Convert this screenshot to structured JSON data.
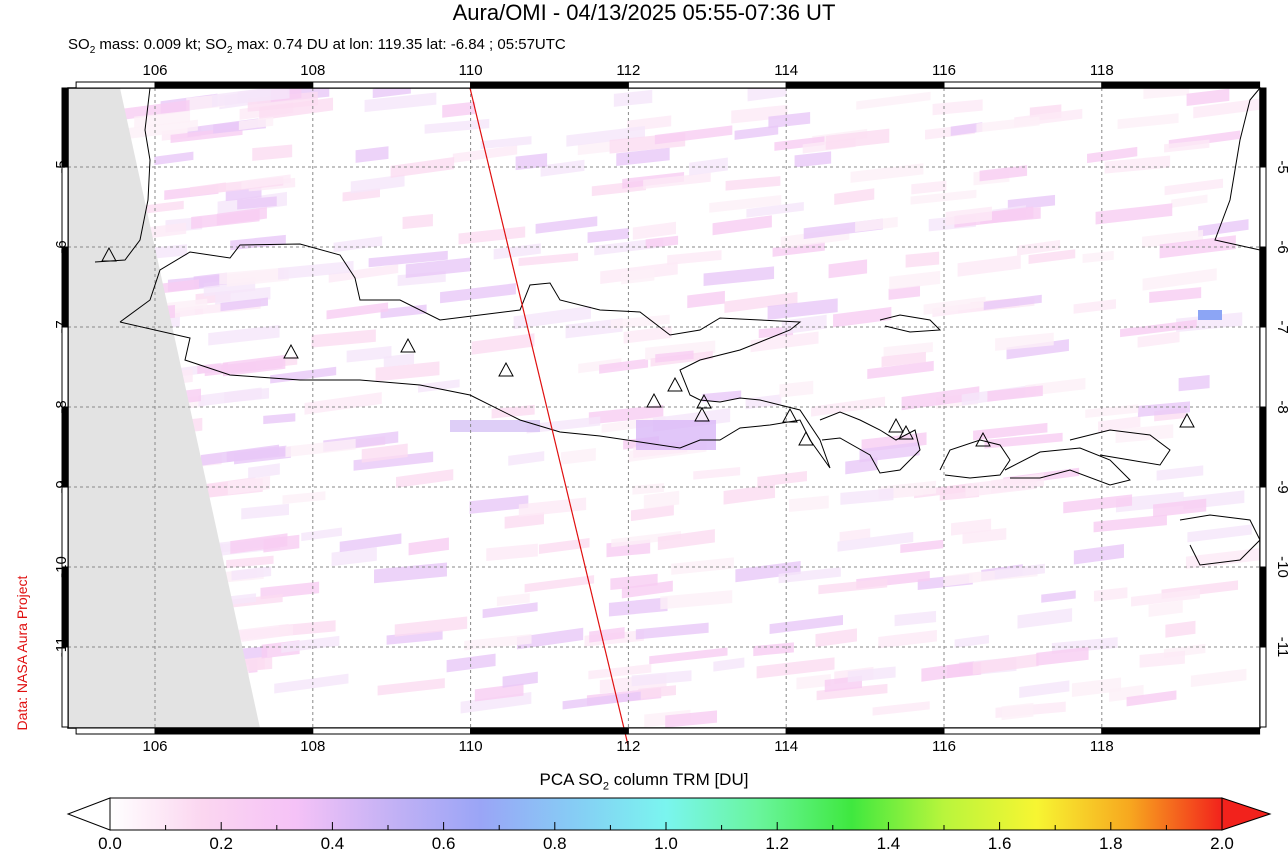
{
  "title": "Aura/OMI - 04/13/2025 05:55-07:36 UT",
  "subtitle": {
    "so2_mass_prefix": "SO",
    "sub": "2",
    "mass_text": " mass: 0.009 kt; SO",
    "max_sub": "2",
    "max_text": " max: 0.74 DU at lon: 119.35 lat: -6.84 ; 05:57UTC"
  },
  "map": {
    "lon_labels": [
      "106",
      "108",
      "110",
      "112",
      "114",
      "116",
      "118"
    ],
    "lat_labels": [
      "-5",
      "-6",
      "-7",
      "-8",
      "-9",
      "-10",
      "-11"
    ],
    "credit": "Data: NASA Aura Project"
  },
  "colorbar": {
    "title_prefix": "PCA SO",
    "title_sub": "2",
    "title_suffix": " column TRM [DU]",
    "ticks": [
      "0.0",
      "0.2",
      "0.4",
      "0.6",
      "0.8",
      "1.0",
      "1.2",
      "1.4",
      "1.6",
      "1.8",
      "2.0"
    ],
    "colors": [
      "#ffffff",
      "#fbd6f0",
      "#f5c2f7",
      "#c5b2f5",
      "#9aa5f6",
      "#86ccf5",
      "#7af5ef",
      "#69f59c",
      "#3fe83f",
      "#b9f53c",
      "#f7f532",
      "#f7a81f",
      "#f2221c"
    ]
  }
}
